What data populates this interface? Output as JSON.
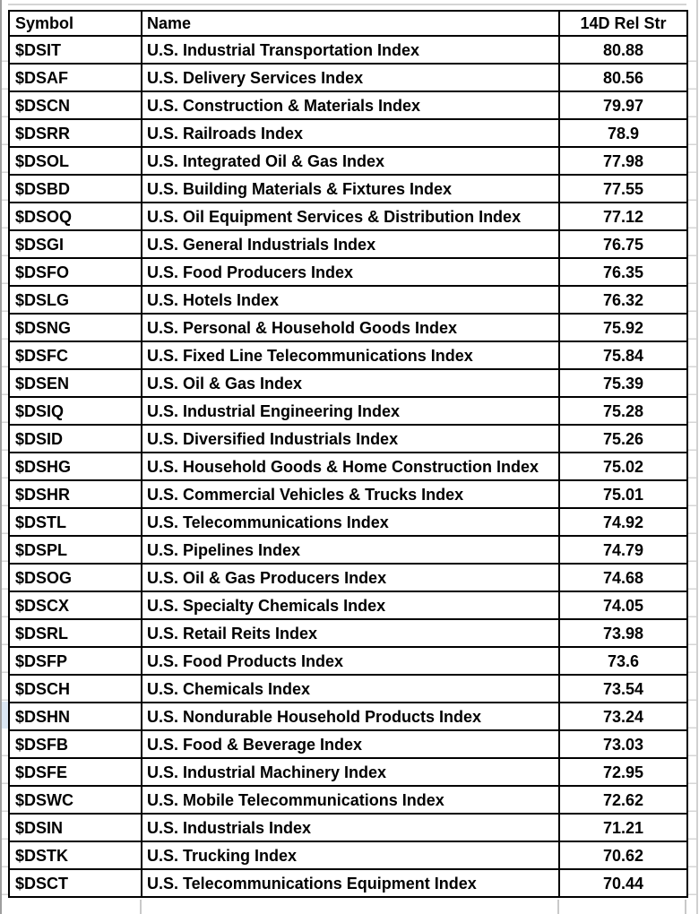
{
  "app": {
    "type": "spreadsheet-table"
  },
  "colors": {
    "background": "#ffffff",
    "text": "#000000",
    "table_border": "#000000",
    "faint_gridline": "#d4d4d4",
    "row_header_highlight": "#dbe6f2"
  },
  "table": {
    "columns": [
      {
        "key": "symbol",
        "label": "Symbol"
      },
      {
        "key": "name",
        "label": "Name"
      },
      {
        "key": "rel_str",
        "label": "14D Rel Str"
      }
    ],
    "rows": [
      {
        "symbol": "$DSIT",
        "name": "U.S. Industrial Transportation Index",
        "rel_str": "80.88"
      },
      {
        "symbol": "$DSAF",
        "name": "U.S. Delivery Services Index",
        "rel_str": "80.56"
      },
      {
        "symbol": "$DSCN",
        "name": "U.S. Construction & Materials Index",
        "rel_str": "79.97"
      },
      {
        "symbol": "$DSRR",
        "name": "U.S. Railroads Index",
        "rel_str": "78.9"
      },
      {
        "symbol": "$DSOL",
        "name": "U.S. Integrated Oil & Gas Index",
        "rel_str": "77.98"
      },
      {
        "symbol": "$DSBD",
        "name": "U.S. Building Materials & Fixtures Index",
        "rel_str": "77.55"
      },
      {
        "symbol": "$DSOQ",
        "name": "U.S. Oil Equipment Services & Distribution Index",
        "rel_str": "77.12"
      },
      {
        "symbol": "$DSGI",
        "name": "U.S. General Industrials Index",
        "rel_str": "76.75"
      },
      {
        "symbol": "$DSFO",
        "name": "U.S. Food Producers Index",
        "rel_str": "76.35"
      },
      {
        "symbol": "$DSLG",
        "name": "U.S. Hotels Index",
        "rel_str": "76.32"
      },
      {
        "symbol": "$DSNG",
        "name": "U.S. Personal & Household Goods Index",
        "rel_str": "75.92"
      },
      {
        "symbol": "$DSFC",
        "name": "U.S. Fixed Line Telecommunications Index",
        "rel_str": "75.84"
      },
      {
        "symbol": "$DSEN",
        "name": "U.S. Oil & Gas Index",
        "rel_str": "75.39"
      },
      {
        "symbol": "$DSIQ",
        "name": "U.S. Industrial Engineering Index",
        "rel_str": "75.28"
      },
      {
        "symbol": "$DSID",
        "name": "U.S. Diversified Industrials Index",
        "rel_str": "75.26"
      },
      {
        "symbol": "$DSHG",
        "name": "U.S. Household Goods & Home Construction Index",
        "rel_str": "75.02"
      },
      {
        "symbol": "$DSHR",
        "name": "U.S. Commercial Vehicles & Trucks Index",
        "rel_str": "75.01"
      },
      {
        "symbol": "$DSTL",
        "name": "U.S. Telecommunications Index",
        "rel_str": "74.92"
      },
      {
        "symbol": "$DSPL",
        "name": "U.S. Pipelines Index",
        "rel_str": "74.79"
      },
      {
        "symbol": "$DSOG",
        "name": "U.S. Oil & Gas Producers Index",
        "rel_str": "74.68"
      },
      {
        "symbol": "$DSCX",
        "name": "U.S. Specialty Chemicals Index",
        "rel_str": "74.05"
      },
      {
        "symbol": "$DSRL",
        "name": "U.S. Retail Reits Index",
        "rel_str": "73.98"
      },
      {
        "symbol": "$DSFP",
        "name": "U.S. Food Products Index",
        "rel_str": "73.6"
      },
      {
        "symbol": "$DSCH",
        "name": "U.S. Chemicals Index",
        "rel_str": "73.54"
      },
      {
        "symbol": "$DSHN",
        "name": "U.S. Nondurable Household Products Index",
        "rel_str": "73.24"
      },
      {
        "symbol": "$DSFB",
        "name": "U.S. Food & Beverage Index",
        "rel_str": "73.03"
      },
      {
        "symbol": "$DSFE",
        "name": "U.S. Industrial Machinery Index",
        "rel_str": "72.95"
      },
      {
        "symbol": "$DSWC",
        "name": "U.S. Mobile Telecommunications Index",
        "rel_str": "72.62"
      },
      {
        "symbol": "$DSIN",
        "name": "U.S. Industrials Index",
        "rel_str": "71.21"
      },
      {
        "symbol": "$DSTK",
        "name": "U.S. Trucking Index",
        "rel_str": "70.62"
      },
      {
        "symbol": "$DSCT",
        "name": "U.S. Telecommunications Equipment Index",
        "rel_str": "70.44"
      }
    ]
  }
}
